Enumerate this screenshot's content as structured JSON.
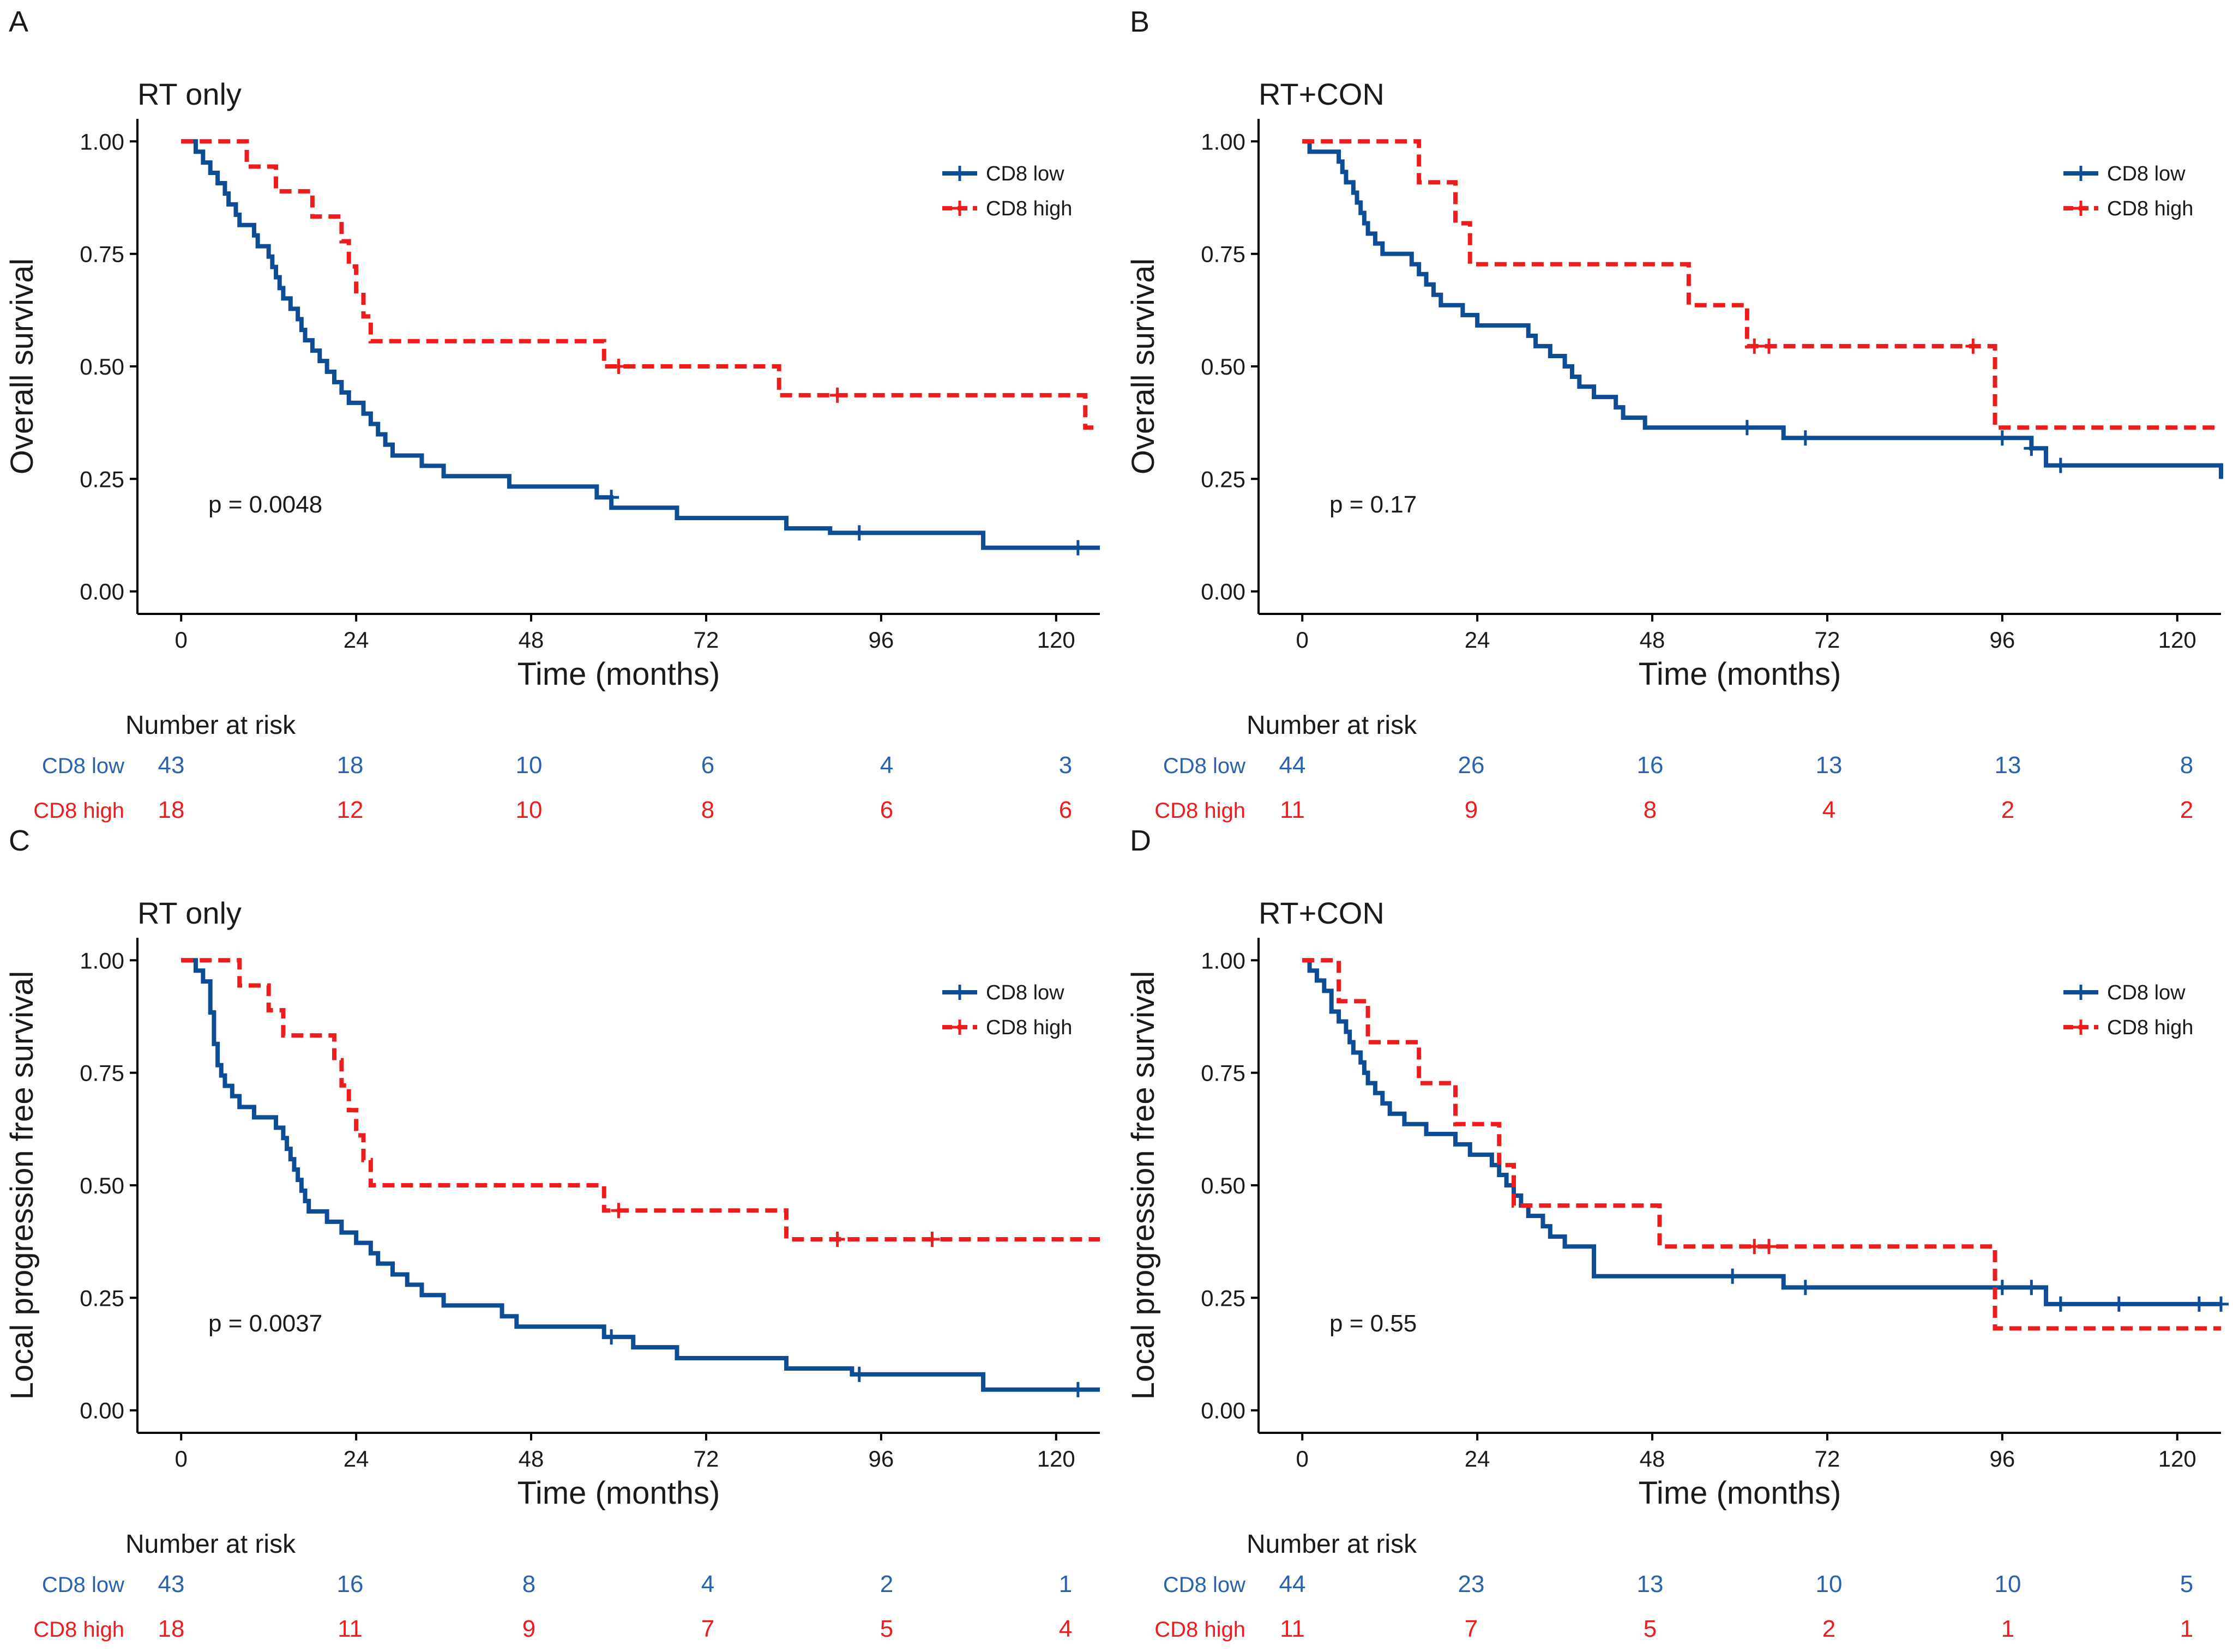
{
  "colors": {
    "low": "#0e4c96",
    "high": "#ee1c1c",
    "low_text": "#2b62b0",
    "high_text": "#ee1c1c",
    "axis": "#000000"
  },
  "common": {
    "xlabel": "Time (months)",
    "xticks": [
      0,
      24,
      48,
      72,
      96,
      120
    ],
    "xlim": [
      -6,
      126
    ],
    "yticks": [
      "0.00",
      "0.25",
      "0.50",
      "0.75",
      "1.00"
    ],
    "ylim": [
      -0.05,
      1.05
    ],
    "risk_title": "Number at risk",
    "risk_times": [
      0,
      24,
      48,
      72,
      96,
      120
    ],
    "group_low": "CD8 low",
    "group_high": "CD8 high"
  },
  "chart_data": [
    {
      "panel": "A",
      "type": "line",
      "title": "RT only",
      "ylabel": "Overall survival",
      "pvalue": "p = 0.0048",
      "legend": "top-right",
      "series": [
        {
          "name": "CD8 low",
          "style": "solid",
          "steps": [
            [
              0,
              1.0
            ],
            [
              2,
              0.977
            ],
            [
              3,
              0.953
            ],
            [
              4,
              0.93
            ],
            [
              5,
              0.907
            ],
            [
              6,
              0.884
            ],
            [
              6.5,
              0.86
            ],
            [
              7.5,
              0.837
            ],
            [
              8,
              0.814
            ],
            [
              10,
              0.791
            ],
            [
              10.5,
              0.767
            ],
            [
              12,
              0.744
            ],
            [
              12.5,
              0.721
            ],
            [
              13,
              0.698
            ],
            [
              13.5,
              0.674
            ],
            [
              14,
              0.651
            ],
            [
              15,
              0.628
            ],
            [
              16,
              0.605
            ],
            [
              16.5,
              0.581
            ],
            [
              17,
              0.558
            ],
            [
              18,
              0.535
            ],
            [
              19,
              0.512
            ],
            [
              20,
              0.488
            ],
            [
              21,
              0.465
            ],
            [
              22,
              0.442
            ],
            [
              23,
              0.419
            ],
            [
              25,
              0.395
            ],
            [
              26,
              0.372
            ],
            [
              27,
              0.349
            ],
            [
              28,
              0.326
            ],
            [
              29,
              0.302
            ],
            [
              33,
              0.279
            ],
            [
              36,
              0.256
            ],
            [
              45,
              0.233
            ],
            [
              57,
              0.209
            ],
            [
              59,
              0.186
            ],
            [
              68,
              0.163
            ],
            [
              83,
              0.14
            ],
            [
              89,
              0.13
            ],
            [
              110,
              0.097
            ]
          ],
          "end": 126,
          "censors": [
            [
              59,
              0.209
            ],
            [
              93,
              0.13
            ],
            [
              123,
              0.097
            ]
          ]
        },
        {
          "name": "CD8 high",
          "style": "dashed",
          "steps": [
            [
              0,
              1.0
            ],
            [
              9,
              0.944
            ],
            [
              13,
              0.889
            ],
            [
              18,
              0.833
            ],
            [
              22,
              0.778
            ],
            [
              23,
              0.722
            ],
            [
              24,
              0.667
            ],
            [
              25,
              0.611
            ],
            [
              26,
              0.556
            ],
            [
              58,
              0.5
            ],
            [
              82,
              0.436
            ],
            [
              124,
              0.364
            ]
          ],
          "end": 126,
          "censors": [
            [
              60,
              0.5
            ],
            [
              90,
              0.436
            ]
          ]
        }
      ],
      "risk": {
        "CD8 low": [
          43,
          18,
          10,
          6,
          4,
          3
        ],
        "CD8 high": [
          18,
          12,
          10,
          8,
          6,
          6
        ]
      }
    },
    {
      "panel": "B",
      "type": "line",
      "title": "RT+CON",
      "ylabel": "Overall survival",
      "pvalue": "p = 0.17",
      "legend": "top-right",
      "series": [
        {
          "name": "CD8 low",
          "style": "solid",
          "steps": [
            [
              0,
              1.0
            ],
            [
              1,
              0.977
            ],
            [
              5,
              0.955
            ],
            [
              5.5,
              0.932
            ],
            [
              6,
              0.909
            ],
            [
              7,
              0.886
            ],
            [
              7.5,
              0.864
            ],
            [
              8,
              0.841
            ],
            [
              8.5,
              0.818
            ],
            [
              9,
              0.795
            ],
            [
              10,
              0.773
            ],
            [
              11,
              0.75
            ],
            [
              15,
              0.727
            ],
            [
              16,
              0.705
            ],
            [
              17,
              0.682
            ],
            [
              18,
              0.659
            ],
            [
              19,
              0.636
            ],
            [
              22,
              0.614
            ],
            [
              24,
              0.591
            ],
            [
              31,
              0.568
            ],
            [
              32,
              0.545
            ],
            [
              34,
              0.523
            ],
            [
              36,
              0.5
            ],
            [
              37,
              0.477
            ],
            [
              38,
              0.455
            ],
            [
              40,
              0.432
            ],
            [
              43,
              0.409
            ],
            [
              44,
              0.386
            ],
            [
              47,
              0.364
            ],
            [
              66,
              0.341
            ],
            [
              100,
              0.318
            ],
            [
              102,
              0.28
            ],
            [
              126,
              0.25
            ]
          ],
          "end": 126,
          "censors": [
            [
              61,
              0.364
            ],
            [
              69,
              0.341
            ],
            [
              96,
              0.341
            ],
            [
              100,
              0.318
            ],
            [
              104,
              0.28
            ]
          ]
        },
        {
          "name": "CD8 high",
          "style": "dashed",
          "steps": [
            [
              0,
              1.0
            ],
            [
              16,
              0.909
            ],
            [
              21,
              0.818
            ],
            [
              23,
              0.727
            ],
            [
              53,
              0.636
            ],
            [
              61,
              0.545
            ],
            [
              95,
              0.364
            ]
          ],
          "end": 126,
          "censors": [
            [
              62,
              0.545
            ],
            [
              64,
              0.545
            ],
            [
              92,
              0.545
            ]
          ]
        }
      ],
      "risk": {
        "CD8 low": [
          44,
          26,
          16,
          13,
          13,
          8
        ],
        "CD8 high": [
          11,
          9,
          8,
          4,
          2,
          2
        ]
      }
    },
    {
      "panel": "C",
      "type": "line",
      "title": "RT only",
      "ylabel": "Local progression free survival",
      "pvalue": "p = 0.0037",
      "legend": "top-right",
      "series": [
        {
          "name": "CD8 low",
          "style": "solid",
          "steps": [
            [
              0,
              1.0
            ],
            [
              2,
              0.977
            ],
            [
              3,
              0.953
            ],
            [
              4,
              0.884
            ],
            [
              4.5,
              0.814
            ],
            [
              5,
              0.767
            ],
            [
              5.5,
              0.744
            ],
            [
              6,
              0.721
            ],
            [
              7,
              0.698
            ],
            [
              8,
              0.674
            ],
            [
              10,
              0.651
            ],
            [
              13,
              0.628
            ],
            [
              14,
              0.605
            ],
            [
              14.5,
              0.581
            ],
            [
              15,
              0.558
            ],
            [
              15.5,
              0.535
            ],
            [
              16,
              0.512
            ],
            [
              16.5,
              0.488
            ],
            [
              17,
              0.465
            ],
            [
              17.5,
              0.442
            ],
            [
              20,
              0.419
            ],
            [
              22,
              0.395
            ],
            [
              24,
              0.372
            ],
            [
              26,
              0.349
            ],
            [
              27,
              0.326
            ],
            [
              29,
              0.302
            ],
            [
              31,
              0.279
            ],
            [
              33,
              0.256
            ],
            [
              36,
              0.233
            ],
            [
              44,
              0.209
            ],
            [
              46,
              0.186
            ],
            [
              58,
              0.163
            ],
            [
              62,
              0.14
            ],
            [
              68,
              0.116
            ],
            [
              83,
              0.093
            ],
            [
              92,
              0.08
            ],
            [
              110,
              0.046
            ]
          ],
          "end": 126,
          "censors": [
            [
              59,
              0.163
            ],
            [
              93,
              0.08
            ],
            [
              123,
              0.046
            ]
          ]
        },
        {
          "name": "CD8 high",
          "style": "dashed",
          "steps": [
            [
              0,
              1.0
            ],
            [
              8,
              0.944
            ],
            [
              12,
              0.889
            ],
            [
              14,
              0.833
            ],
            [
              21,
              0.778
            ],
            [
              22,
              0.722
            ],
            [
              23,
              0.667
            ],
            [
              24,
              0.611
            ],
            [
              25,
              0.556
            ],
            [
              26,
              0.5
            ],
            [
              58,
              0.444
            ],
            [
              83,
              0.38
            ]
          ],
          "end": 126,
          "censors": [
            [
              60,
              0.444
            ],
            [
              90,
              0.38
            ],
            [
              103,
              0.38
            ]
          ]
        }
      ],
      "risk": {
        "CD8 low": [
          43,
          16,
          8,
          4,
          2,
          1
        ],
        "CD8 high": [
          18,
          11,
          9,
          7,
          5,
          4
        ]
      }
    },
    {
      "panel": "D",
      "type": "line",
      "title": "RT+CON",
      "ylabel": "Local progression free survival",
      "pvalue": "p = 0.55",
      "legend": "top-right",
      "series": [
        {
          "name": "CD8 low",
          "style": "solid",
          "steps": [
            [
              0,
              1.0
            ],
            [
              1,
              0.977
            ],
            [
              2,
              0.955
            ],
            [
              3,
              0.932
            ],
            [
              4,
              0.886
            ],
            [
              5,
              0.864
            ],
            [
              6,
              0.841
            ],
            [
              6.5,
              0.818
            ],
            [
              7,
              0.795
            ],
            [
              8,
              0.773
            ],
            [
              8.5,
              0.75
            ],
            [
              9,
              0.727
            ],
            [
              10,
              0.705
            ],
            [
              11,
              0.682
            ],
            [
              12,
              0.659
            ],
            [
              14,
              0.636
            ],
            [
              17,
              0.614
            ],
            [
              21,
              0.591
            ],
            [
              23,
              0.568
            ],
            [
              26,
              0.545
            ],
            [
              27,
              0.523
            ],
            [
              28,
              0.5
            ],
            [
              29,
              0.477
            ],
            [
              30,
              0.455
            ],
            [
              31,
              0.432
            ],
            [
              33,
              0.409
            ],
            [
              34,
              0.386
            ],
            [
              36,
              0.364
            ],
            [
              40,
              0.298
            ],
            [
              66,
              0.273
            ],
            [
              102,
              0.236
            ]
          ],
          "end": 126,
          "censors": [
            [
              59,
              0.298
            ],
            [
              69,
              0.273
            ],
            [
              96,
              0.273
            ],
            [
              100,
              0.273
            ],
            [
              104,
              0.236
            ],
            [
              112,
              0.236
            ],
            [
              123,
              0.236
            ],
            [
              126,
              0.236
            ]
          ]
        },
        {
          "name": "CD8 high",
          "style": "dashed",
          "steps": [
            [
              0,
              1.0
            ],
            [
              5,
              0.909
            ],
            [
              9,
              0.818
            ],
            [
              16,
              0.727
            ],
            [
              21,
              0.636
            ],
            [
              27,
              0.545
            ],
            [
              29,
              0.455
            ],
            [
              49,
              0.364
            ],
            [
              95,
              0.182
            ]
          ],
          "end": 126,
          "censors": [
            [
              62,
              0.364
            ],
            [
              64,
              0.364
            ]
          ]
        }
      ],
      "risk": {
        "CD8 low": [
          44,
          23,
          13,
          10,
          10,
          5
        ],
        "CD8 high": [
          11,
          7,
          5,
          2,
          1,
          1
        ]
      }
    }
  ]
}
